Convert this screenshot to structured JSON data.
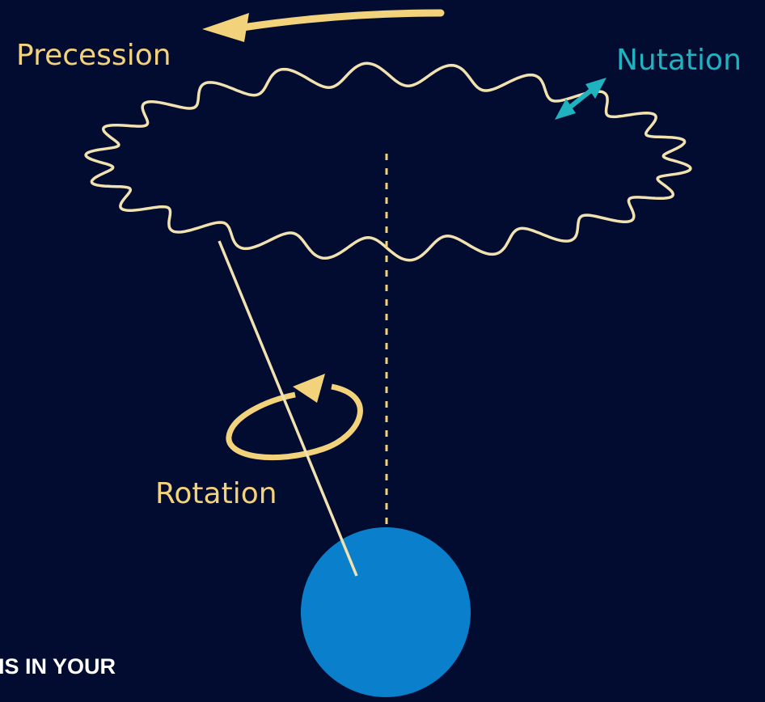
{
  "labels": {
    "precession": "Precession",
    "nutation": "Nutation",
    "rotation": "Rotation"
  },
  "caption": "IS IN YOUR"
}
